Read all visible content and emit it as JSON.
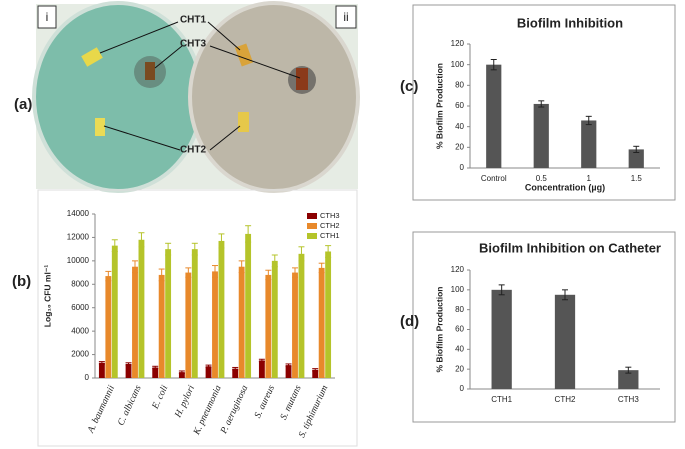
{
  "photo": {
    "panel_label": "(a)",
    "plate_labels": [
      "i",
      "ii"
    ],
    "labels": [
      "CHT1",
      "CHT3",
      "CHT2"
    ]
  },
  "chart_data": [
    {
      "type": "bar",
      "panel_label": "(b)",
      "ylabel": "Log₁₀ CFU ml⁻¹",
      "categories": [
        "A. baumannii",
        "C. albicans",
        "E. coli",
        "H. pylori",
        "K. pneumonia",
        "P. aeruginosa",
        "S. aureus",
        "S. mutans",
        "S. tiphimurium"
      ],
      "series": [
        {
          "name": "CTH3",
          "color": "#8b0000",
          "values": [
            1300,
            1200,
            900,
            500,
            1000,
            800,
            1500,
            1100,
            700
          ],
          "errors": [
            100,
            100,
            100,
            100,
            100,
            100,
            100,
            100,
            100
          ]
        },
        {
          "name": "CTH2",
          "color": "#e8892b",
          "values": [
            8700,
            9500,
            8800,
            9000,
            9100,
            9500,
            8800,
            9000,
            9400
          ],
          "errors": [
            400,
            500,
            500,
            400,
            500,
            500,
            400,
            400,
            400
          ]
        },
        {
          "name": "CTH1",
          "color": "#b5c42a",
          "values": [
            11300,
            11800,
            11000,
            11000,
            11700,
            12300,
            10000,
            10600,
            10800
          ],
          "errors": [
            500,
            600,
            500,
            500,
            600,
            700,
            500,
            600,
            500
          ]
        }
      ],
      "ylim": [
        0,
        14000
      ],
      "yticks": [
        0,
        2000,
        4000,
        6000,
        8000,
        10000,
        12000,
        14000
      ],
      "legend": "upper right"
    },
    {
      "type": "bar",
      "panel_label": "(c)",
      "title": "Biofilm Inhibition",
      "xlabel": "Concentration (µg)",
      "ylabel": "% Biofilm Production",
      "categories": [
        "Control",
        "0.5",
        "1",
        "1.5"
      ],
      "values": [
        100,
        62,
        46,
        18
      ],
      "errors": [
        5,
        3,
        4,
        3
      ],
      "color": "#555555",
      "ylim": [
        0,
        120
      ],
      "yticks": [
        0,
        20,
        40,
        60,
        80,
        100,
        120
      ]
    },
    {
      "type": "bar",
      "panel_label": "(d)",
      "title": "Biofilm Inhibition on Catheter",
      "ylabel": "% Biofilm Production",
      "categories": [
        "CTH1",
        "CTH2",
        "CTH3"
      ],
      "values": [
        100,
        95,
        19
      ],
      "errors": [
        5,
        5,
        3
      ],
      "color": "#555555",
      "ylim": [
        0,
        120
      ],
      "yticks": [
        0,
        20,
        40,
        60,
        80,
        100,
        120
      ]
    }
  ]
}
